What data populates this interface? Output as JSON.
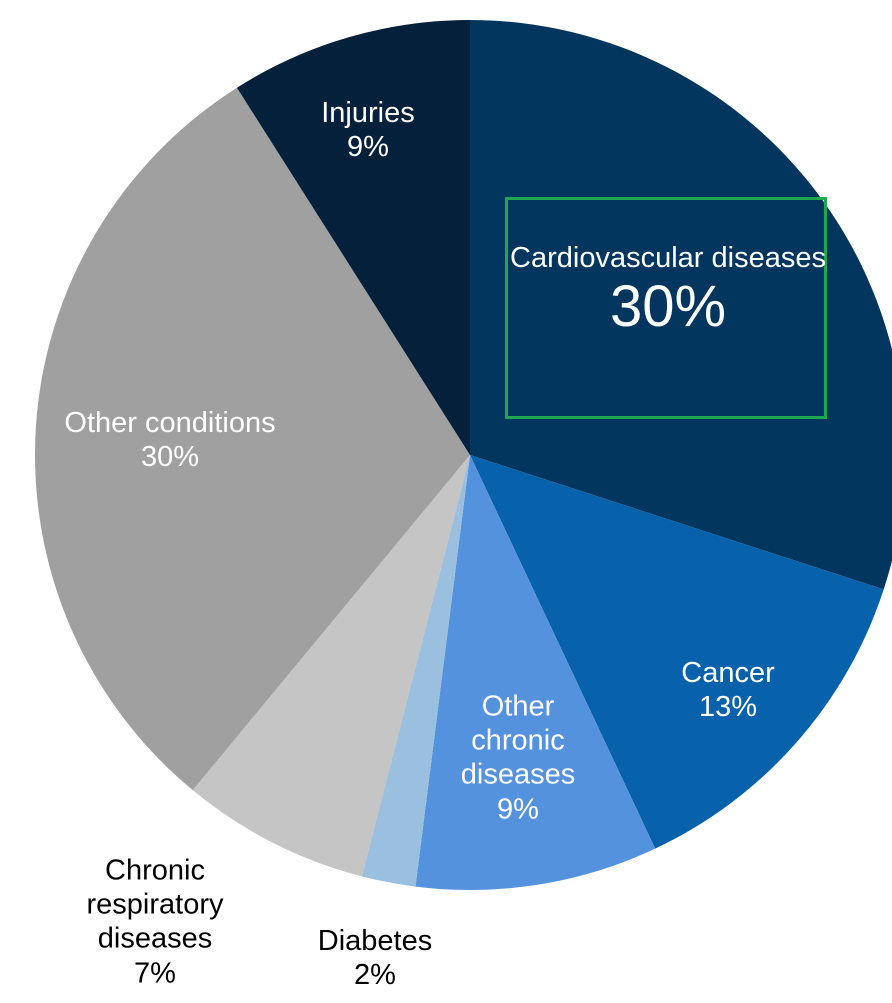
{
  "chart_data": {
    "type": "pie",
    "categories": [
      "Cardiovascular diseases",
      "Cancer",
      "Other chronic diseases",
      "Diabetes",
      "Chronic respiratory diseases",
      "Other conditions",
      "Injuries"
    ],
    "values": [
      30,
      13,
      9,
      2,
      7,
      30,
      9
    ],
    "value_labels": [
      "30%",
      "13%",
      "9%",
      "2%",
      "7%",
      "30%",
      "9%"
    ],
    "colors": [
      "#03365f",
      "#0762ab",
      "#5592dd",
      "#9bbfdf",
      "#c5c5c5",
      "#a0a0a0",
      "#04203a"
    ]
  }
}
